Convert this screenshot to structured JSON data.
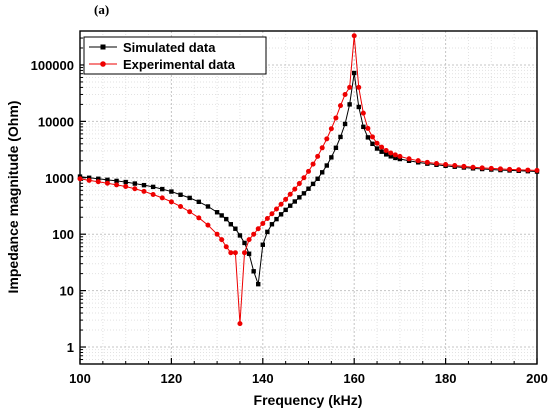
{
  "chart_data": {
    "type": "line",
    "panel_label": "(a)",
    "xlabel": "Frequency (kHz)",
    "ylabel": "Impedance magnitude (Ohm)",
    "xlim": [
      100,
      200
    ],
    "ylim": [
      0.5,
      400000
    ],
    "yscale": "log",
    "x_ticks": [
      100,
      120,
      140,
      160,
      180,
      200
    ],
    "y_ticks": [
      1,
      10,
      100,
      1000,
      10000,
      100000
    ],
    "y_tick_labels": [
      "1",
      "10",
      "100",
      "1000",
      "10000",
      "100000"
    ],
    "grid": true,
    "legend_position": "top-left",
    "series": [
      {
        "name": "Simulated data",
        "color": "#000000",
        "marker": "square",
        "x": [
          100,
          102,
          104,
          106,
          108,
          110,
          112,
          114,
          116,
          118,
          120,
          122,
          124,
          126,
          128,
          130,
          131,
          132,
          133,
          134,
          135,
          136,
          137,
          138,
          139,
          140,
          141,
          142,
          143,
          144,
          145,
          146,
          147,
          148,
          149,
          150,
          151,
          152,
          153,
          154,
          155,
          156,
          157,
          158,
          159,
          160,
          161,
          162,
          163,
          164,
          165,
          166,
          167,
          168,
          169,
          170,
          172,
          174,
          176,
          178,
          180,
          182,
          184,
          186,
          188,
          190,
          192,
          194,
          196,
          198,
          200
        ],
        "values": [
          1050,
          1000,
          960,
          920,
          880,
          840,
          790,
          740,
          690,
          630,
          570,
          500,
          440,
          375,
          310,
          245,
          215,
          185,
          150,
          125,
          95,
          70,
          45,
          22,
          13,
          65,
          110,
          150,
          185,
          225,
          270,
          320,
          380,
          450,
          530,
          640,
          780,
          960,
          1250,
          1650,
          2300,
          3400,
          5300,
          9000,
          20000,
          72000,
          18000,
          8000,
          5200,
          4000,
          3300,
          2900,
          2600,
          2400,
          2250,
          2150,
          2000,
          1880,
          1780,
          1700,
          1630,
          1570,
          1520,
          1470,
          1430,
          1400,
          1370,
          1350,
          1330,
          1310,
          1290
        ]
      },
      {
        "name": "Experimental data",
        "color": "#ee0000",
        "marker": "circle",
        "x": [
          100,
          102,
          104,
          106,
          108,
          110,
          112,
          114,
          116,
          118,
          120,
          122,
          124,
          126,
          128,
          130,
          131,
          132,
          133,
          134,
          135,
          136,
          137,
          138,
          139,
          140,
          141,
          142,
          143,
          144,
          145,
          146,
          147,
          148,
          149,
          150,
          151,
          152,
          153,
          154,
          155,
          156,
          157,
          158,
          159,
          160,
          161,
          162,
          163,
          164,
          165,
          166,
          167,
          168,
          169,
          170,
          172,
          174,
          176,
          178,
          180,
          182,
          184,
          186,
          188,
          190,
          192,
          194,
          196,
          198,
          200
        ],
        "values": [
          960,
          900,
          850,
          800,
          750,
          700,
          640,
          575,
          505,
          440,
          375,
          310,
          250,
          195,
          145,
          100,
          80,
          60,
          47,
          47,
          2.6,
          47,
          80,
          100,
          125,
          155,
          190,
          230,
          280,
          340,
          415,
          510,
          630,
          790,
          1000,
          1300,
          1750,
          2400,
          3400,
          4900,
          7400,
          11500,
          19000,
          30000,
          40000,
          330000,
          40000,
          14000,
          7500,
          5300,
          4100,
          3500,
          3050,
          2750,
          2550,
          2400,
          2170,
          2010,
          1880,
          1790,
          1720,
          1650,
          1590,
          1540,
          1500,
          1470,
          1440,
          1410,
          1390,
          1370,
          1350
        ]
      }
    ]
  }
}
